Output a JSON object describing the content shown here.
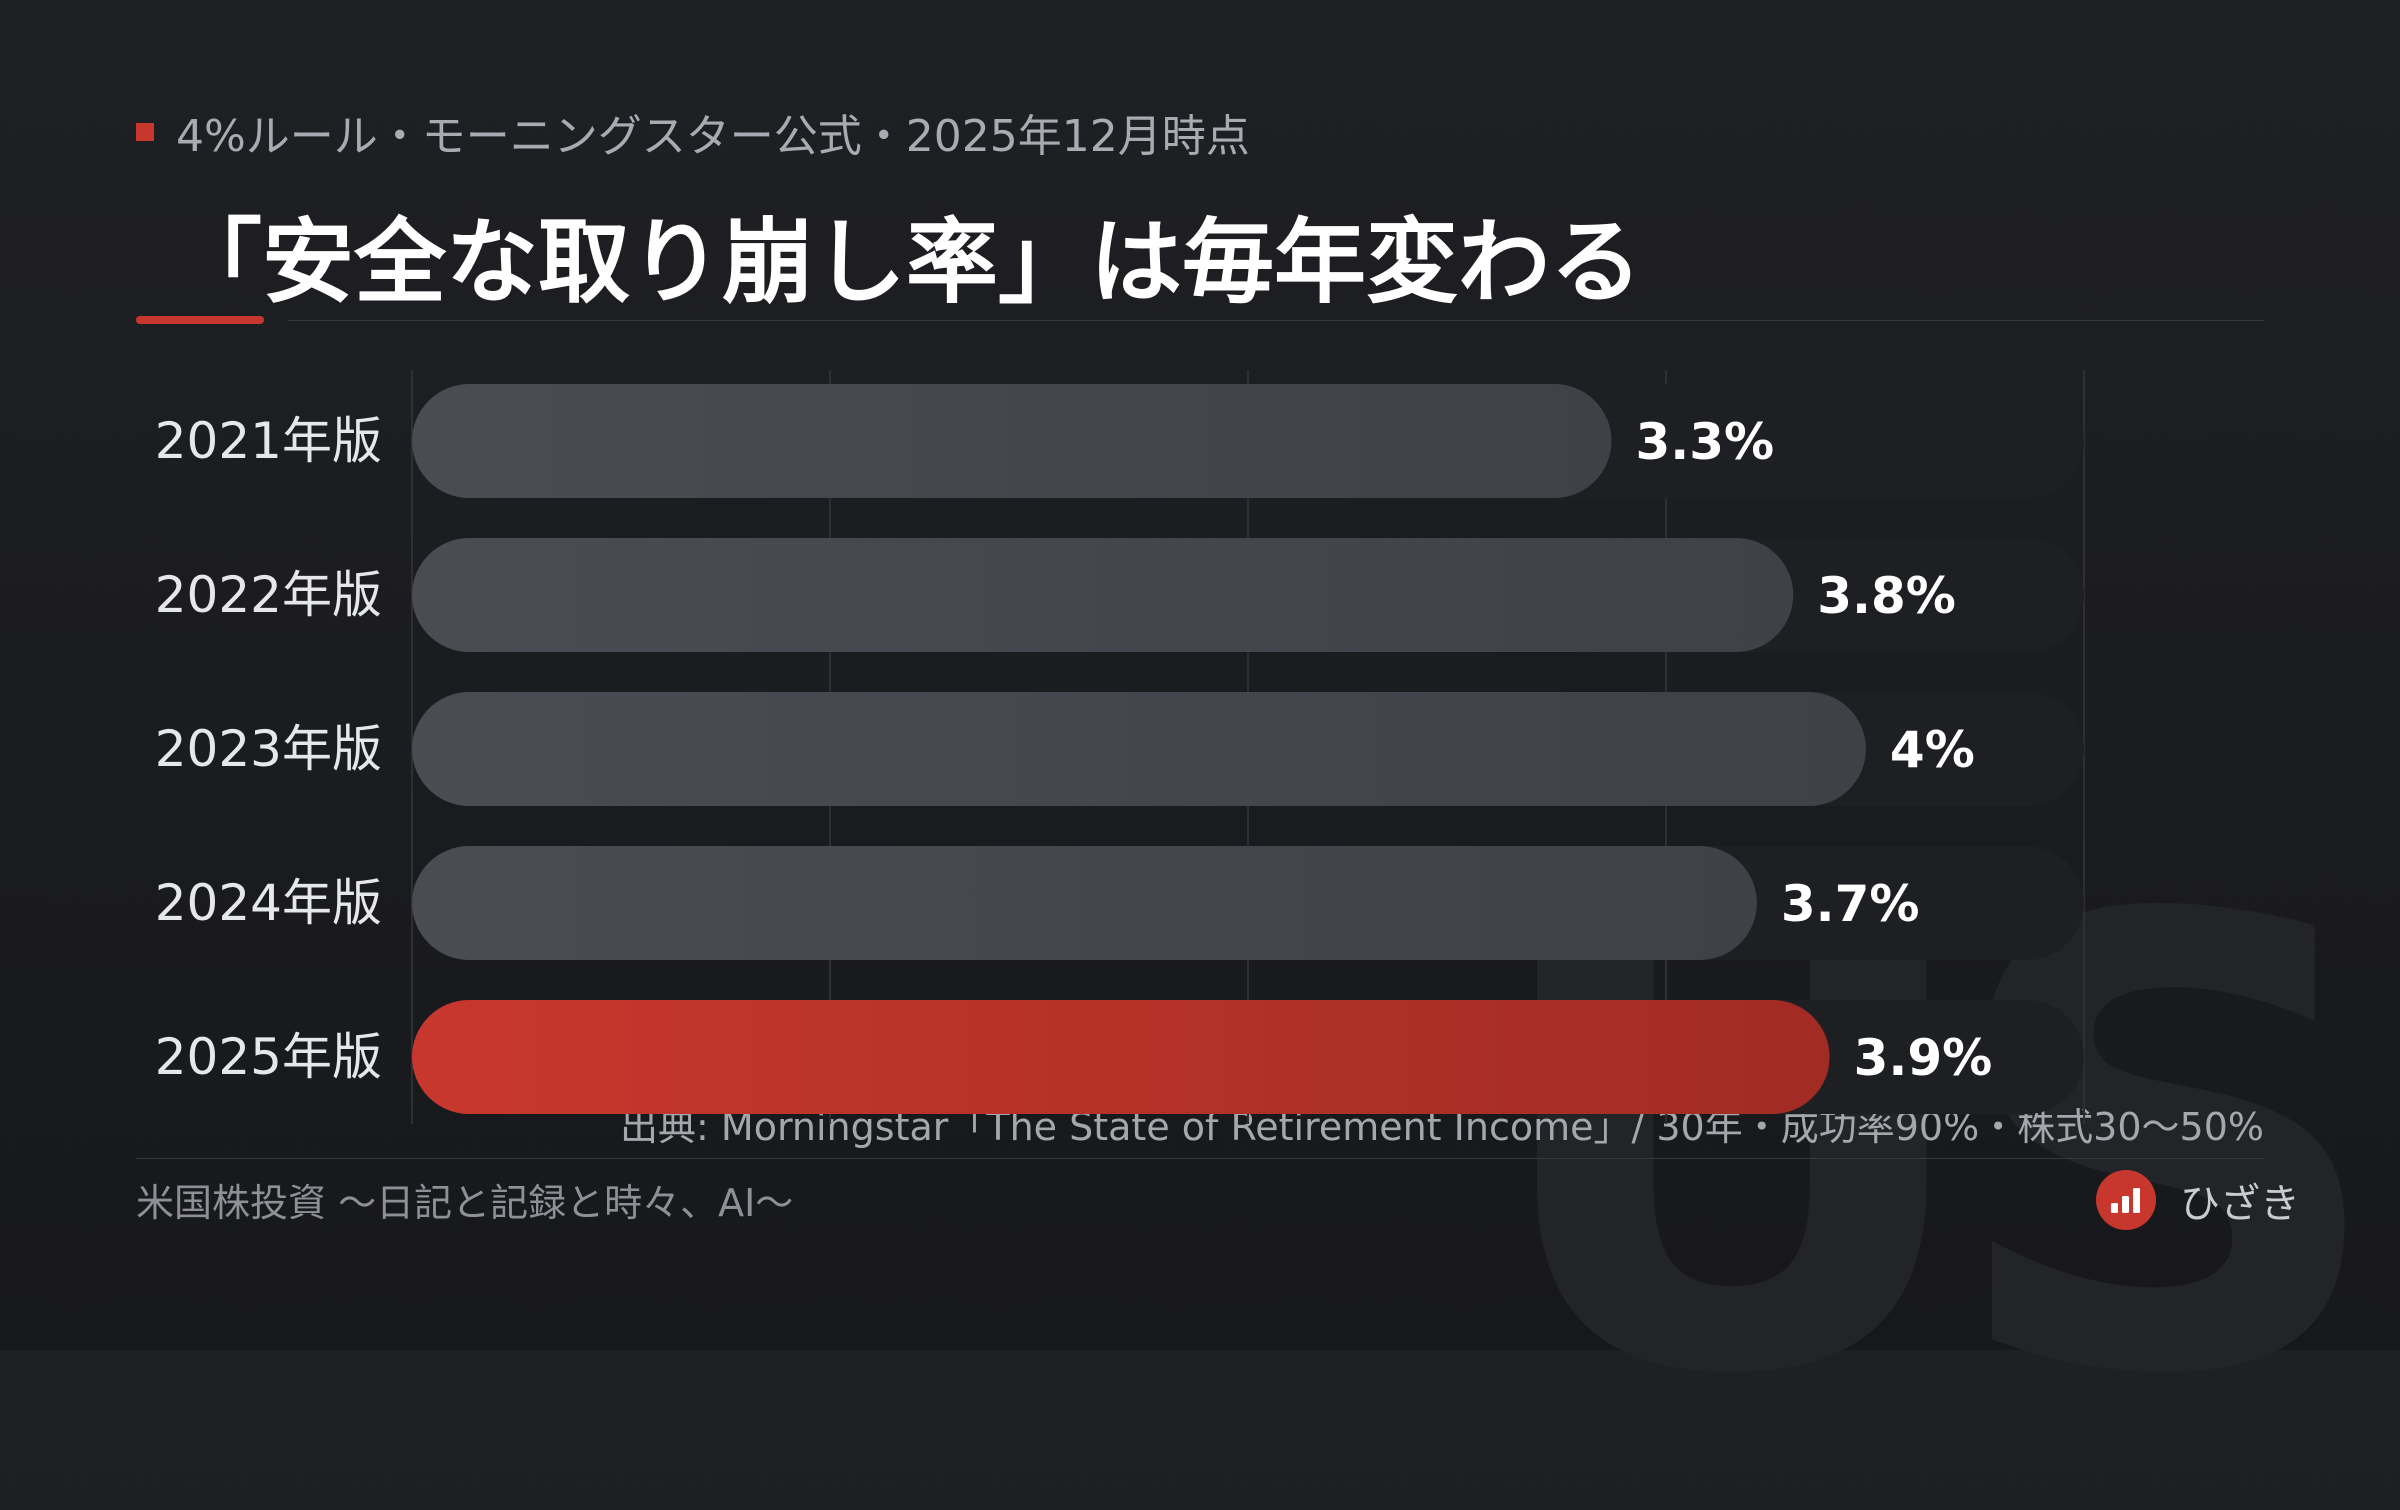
{
  "header": {
    "kicker": "4%ルール・モーニングスター公式・2025年12月時点",
    "title": "「安全な取り崩し率」は毎年変わる"
  },
  "chart_data": {
    "type": "bar",
    "orientation": "horizontal",
    "categories": [
      "2021年版",
      "2022年版",
      "2023年版",
      "2024年版",
      "2025年版"
    ],
    "values": [
      3.3,
      3.8,
      4.0,
      3.7,
      3.9
    ],
    "value_labels": [
      "3.3%",
      "3.8%",
      "4%",
      "3.7%",
      "3.9%"
    ],
    "highlight_index": 4,
    "xlim": [
      0,
      4.6
    ],
    "grid": true,
    "colors": {
      "bar": "#45474e",
      "highlight": "#c2362b",
      "track": "#1d1f22",
      "grid": "#2e2f34"
    }
  },
  "source": "出典: Morningstar「The State of Retirement Income」/ 30年・成功率90%・株式30〜50%",
  "footer": {
    "blog_name": "米国株投資 〜日記と記録と時々、AI〜",
    "brand_name": "ひざき",
    "brand_icon": "bar-chart-icon"
  },
  "watermark": "US"
}
